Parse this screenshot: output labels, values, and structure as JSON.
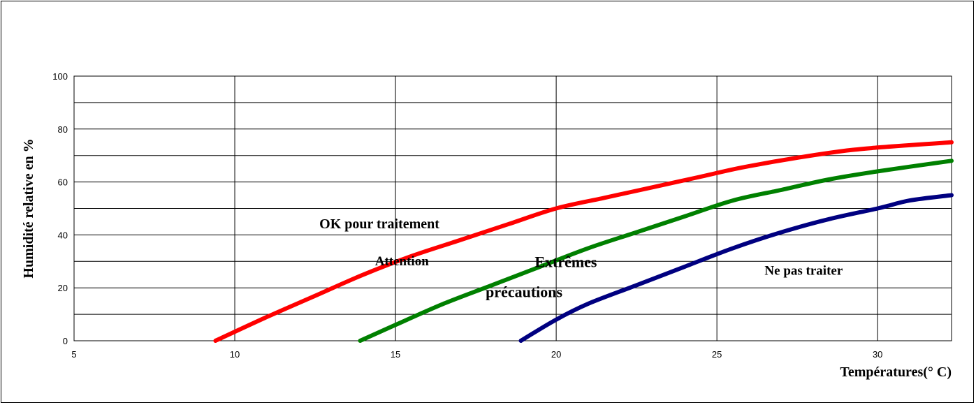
{
  "chart_data": {
    "type": "line",
    "xlabel": "Températures(° C)",
    "ylabel": "Humidité relative en %",
    "xlim": [
      5,
      32.3
    ],
    "ylim": [
      0,
      100
    ],
    "x_ticks": [
      "5",
      "10",
      "15",
      "20",
      "25",
      "30"
    ],
    "y_ticks": [
      "0",
      "20",
      "40",
      "60",
      "80",
      "100"
    ],
    "grid": true,
    "series": [
      {
        "color": "#ff0000",
        "points": [
          [
            9.4,
            0
          ],
          [
            11,
            9
          ],
          [
            12.5,
            17
          ],
          [
            14,
            25
          ],
          [
            15.5,
            32
          ],
          [
            17,
            38
          ],
          [
            18.5,
            44
          ],
          [
            20,
            50
          ],
          [
            21.5,
            54
          ],
          [
            23,
            58
          ],
          [
            24.5,
            62
          ],
          [
            26,
            66
          ],
          [
            28.5,
            71
          ],
          [
            30,
            73
          ],
          [
            32.3,
            75
          ]
        ]
      },
      {
        "color": "#008000",
        "points": [
          [
            13.9,
            0
          ],
          [
            15,
            6
          ],
          [
            16.5,
            14
          ],
          [
            18,
            21
          ],
          [
            19.5,
            28
          ],
          [
            21,
            35
          ],
          [
            22.5,
            41
          ],
          [
            24,
            47
          ],
          [
            25.5,
            53
          ],
          [
            27,
            57
          ],
          [
            28.5,
            61
          ],
          [
            30,
            64
          ],
          [
            32.3,
            68
          ]
        ]
      },
      {
        "color": "#000080",
        "points": [
          [
            18.9,
            0
          ],
          [
            20,
            8
          ],
          [
            21,
            14
          ],
          [
            22.5,
            21
          ],
          [
            24,
            28
          ],
          [
            25.5,
            35
          ],
          [
            27,
            41
          ],
          [
            28.5,
            46
          ],
          [
            30,
            50
          ],
          [
            31,
            53
          ],
          [
            32.3,
            55
          ]
        ]
      }
    ],
    "annotations": [
      {
        "text": "OK pour traitement",
        "x": 14.5,
        "y": 42.5,
        "size": 20
      },
      {
        "text": "Attention",
        "x": 15.2,
        "y": 28.5,
        "size": 19
      },
      {
        "text": "Extrêmes",
        "x": 20.3,
        "y": 27.8,
        "size": 22
      },
      {
        "text": "précautions",
        "x": 19.0,
        "y": 16.5,
        "size": 22
      },
      {
        "text": "Ne pas traiter",
        "x": 27.7,
        "y": 25.0,
        "size": 19
      }
    ]
  }
}
